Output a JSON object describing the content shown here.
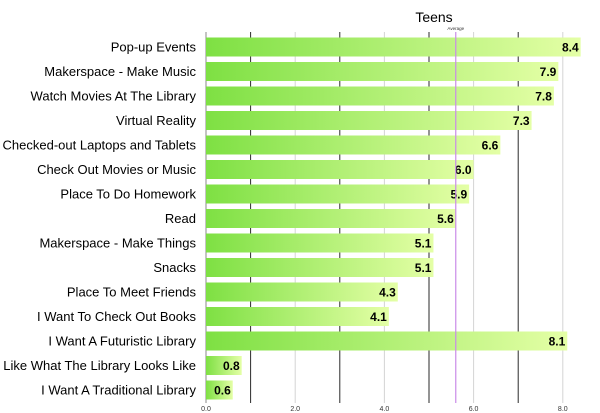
{
  "chart_data": {
    "type": "bar",
    "orientation": "horizontal",
    "title": "Teens",
    "categories": [
      "Pop-up Events",
      "Makerspace - Make Music",
      "Watch Movies At The Library",
      "Virtual Reality",
      "Checked-out Laptops and Tablets",
      "Check Out Movies or Music",
      "Place To Do Homework",
      "Read",
      "Makerspace - Make Things",
      "Snacks",
      "Place To Meet Friends",
      "I Want To Check Out Books",
      "I Want A Futuristic  Library",
      "I Like What The Library Looks Like",
      "I Want A Traditional Library"
    ],
    "values": [
      8.4,
      7.9,
      7.8,
      7.3,
      6.6,
      6.0,
      5.9,
      5.6,
      5.1,
      5.1,
      4.3,
      4.1,
      8.1,
      0.8,
      0.6
    ],
    "value_labels": [
      "8.4",
      "7.9",
      "7.8",
      "7.3",
      "6.6",
      "6.0",
      "5.9",
      "5.6",
      "5.1",
      "5.1",
      "4.3",
      "4.1",
      "8.1",
      "0.8",
      "0.6"
    ],
    "xlim": [
      0,
      8.5
    ],
    "x_ticks": [
      0,
      2,
      4,
      6,
      8
    ],
    "x_tick_labels": [
      "0.0",
      "2.0",
      "4.0",
      "6.0",
      "8.0"
    ],
    "major_gridlines": [
      1,
      3,
      5,
      7
    ],
    "minor_gridlines": [
      2,
      4,
      6,
      8
    ],
    "reference_line": {
      "label": "Average",
      "value": 5.6
    },
    "bar_gradient": [
      "#7ee043",
      "#e4ffa6"
    ],
    "colors": {
      "grid_major": "#2a2a2a",
      "grid_minor": "#d4d4d4",
      "average_line": "#c98be8"
    }
  }
}
